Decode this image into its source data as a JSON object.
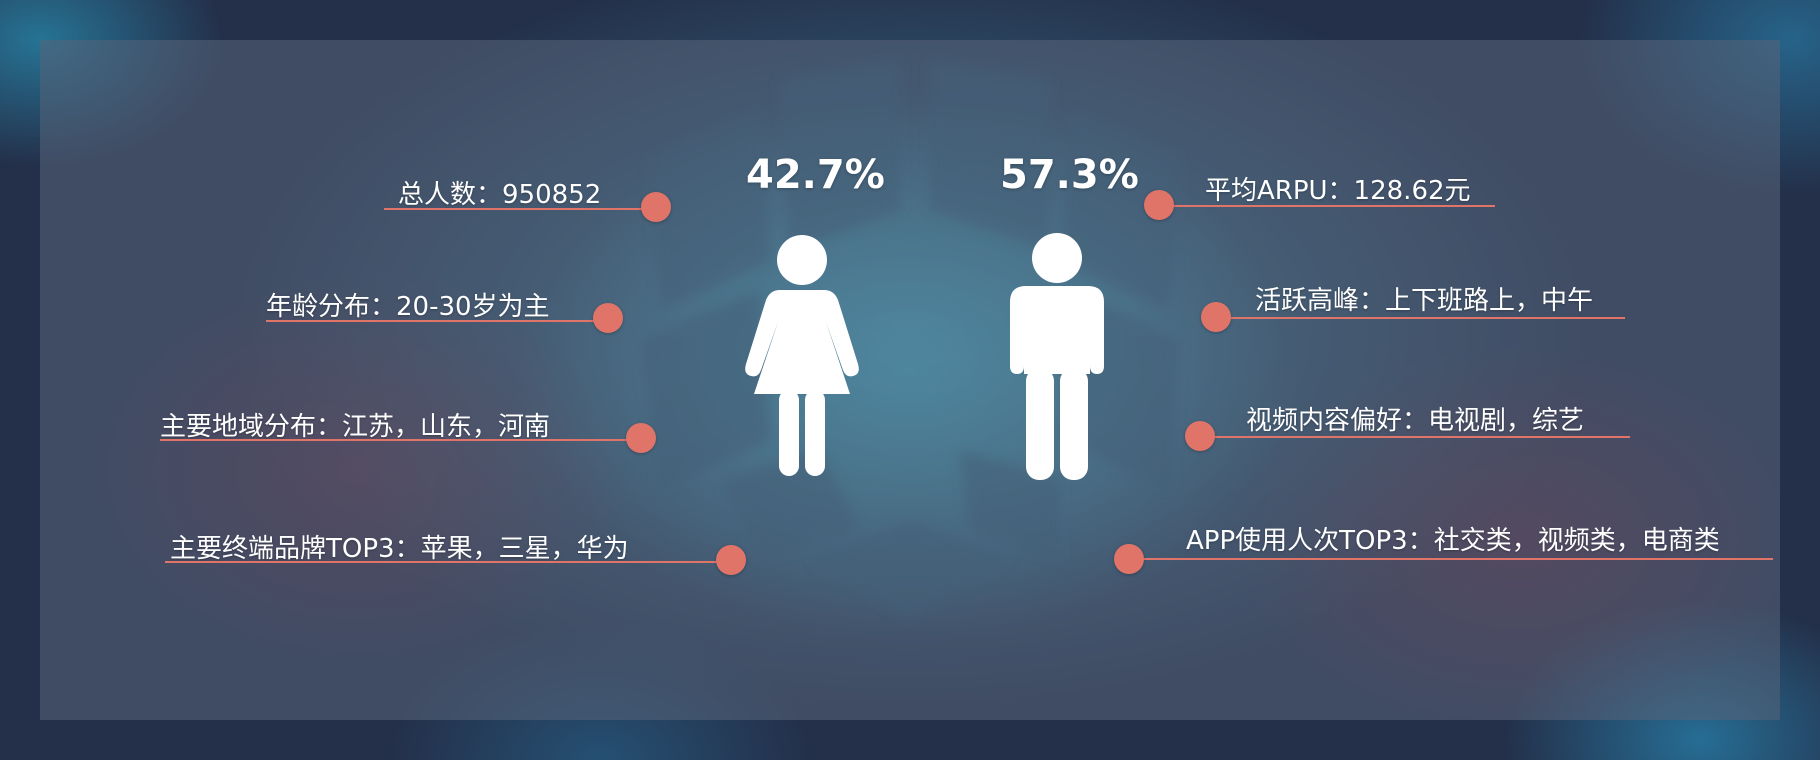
{
  "female": {
    "percent": "42.7%",
    "icon": "female-figure-icon"
  },
  "male": {
    "percent": "57.3%",
    "icon": "male-figure-icon"
  },
  "left_stats": [
    "总人数：950852",
    "年龄分布：20-30岁为主",
    "主要地域分布：江苏，山东，河南",
    "主要终端品牌TOP3：苹果，三星，华为"
  ],
  "right_stats": [
    "平均ARPU：128.62元",
    "活跃高峰：上下班路上，中午",
    "视频内容偏好：电视剧，综艺",
    "APP使用人次TOP3：社交类，视频类，电商类"
  ],
  "colors": {
    "accent": "#e07468",
    "text": "#ffffff"
  }
}
